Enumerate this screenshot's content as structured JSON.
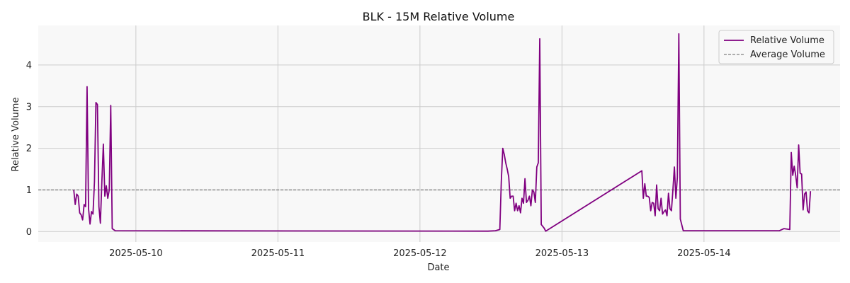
{
  "chart_data": {
    "type": "line",
    "title": "BLK - 15M Relative Volume",
    "xlabel": "Date",
    "ylabel": "Relative Volume",
    "x_range": [
      "2025-05-09T07:30",
      "2025-05-14T23:00"
    ],
    "ylim": [
      -0.25,
      4.95
    ],
    "x_ticks": [
      "2025-05-10",
      "2025-05-11",
      "2025-05-12",
      "2025-05-13",
      "2025-05-14"
    ],
    "y_ticks": [
      0,
      1,
      2,
      3,
      4
    ],
    "grid": true,
    "legend_position": "top-right",
    "colors": {
      "relative_volume": "#800080",
      "average_volume": "#808080",
      "plot_bg": "#f8f8f8",
      "grid": "#cccccc"
    },
    "series": [
      {
        "name": "Relative Volume",
        "style": "solid",
        "points": [
          [
            "2025-05-09T13:30",
            1.0
          ],
          [
            "2025-05-09T13:45",
            0.65
          ],
          [
            "2025-05-09T14:00",
            0.9
          ],
          [
            "2025-05-09T14:15",
            0.85
          ],
          [
            "2025-05-09T14:30",
            0.45
          ],
          [
            "2025-05-09T14:45",
            0.4
          ],
          [
            "2025-05-09T15:00",
            0.28
          ],
          [
            "2025-05-09T15:15",
            0.65
          ],
          [
            "2025-05-09T15:30",
            0.6
          ],
          [
            "2025-05-09T15:45",
            3.48
          ],
          [
            "2025-05-09T16:00",
            0.55
          ],
          [
            "2025-05-09T16:15",
            0.18
          ],
          [
            "2025-05-09T16:30",
            0.48
          ],
          [
            "2025-05-09T16:45",
            0.42
          ],
          [
            "2025-05-09T17:00",
            1.2
          ],
          [
            "2025-05-09T17:15",
            3.1
          ],
          [
            "2025-05-09T17:30",
            3.05
          ],
          [
            "2025-05-09T17:45",
            0.6
          ],
          [
            "2025-05-09T18:00",
            0.2
          ],
          [
            "2025-05-09T18:15",
            1.2
          ],
          [
            "2025-05-09T18:30",
            2.1
          ],
          [
            "2025-05-09T18:45",
            0.85
          ],
          [
            "2025-05-09T19:00",
            1.1
          ],
          [
            "2025-05-09T19:15",
            0.8
          ],
          [
            "2025-05-09T19:30",
            1.0
          ],
          [
            "2025-05-09T19:45",
            3.03
          ],
          [
            "2025-05-09T20:00",
            0.07
          ],
          [
            "2025-05-09T20:30",
            0.02
          ],
          [
            "2025-05-12T11:30",
            0.01
          ],
          [
            "2025-05-12T12:45",
            0.02
          ],
          [
            "2025-05-12T13:30",
            0.05
          ],
          [
            "2025-05-12T13:45",
            1.2
          ],
          [
            "2025-05-12T14:00",
            2.0
          ],
          [
            "2025-05-12T14:15",
            1.85
          ],
          [
            "2025-05-12T14:30",
            1.65
          ],
          [
            "2025-05-12T14:45",
            1.5
          ],
          [
            "2025-05-12T15:00",
            1.32
          ],
          [
            "2025-05-12T15:15",
            0.8
          ],
          [
            "2025-05-12T15:30",
            0.85
          ],
          [
            "2025-05-12T15:45",
            0.85
          ],
          [
            "2025-05-12T16:00",
            0.5
          ],
          [
            "2025-05-12T16:15",
            0.68
          ],
          [
            "2025-05-12T16:30",
            0.5
          ],
          [
            "2025-05-12T16:45",
            0.62
          ],
          [
            "2025-05-12T17:00",
            0.45
          ],
          [
            "2025-05-12T17:15",
            0.8
          ],
          [
            "2025-05-12T17:30",
            0.68
          ],
          [
            "2025-05-12T17:45",
            1.27
          ],
          [
            "2025-05-12T18:00",
            0.7
          ],
          [
            "2025-05-12T18:15",
            0.75
          ],
          [
            "2025-05-12T18:30",
            0.85
          ],
          [
            "2025-05-12T18:45",
            0.62
          ],
          [
            "2025-05-12T19:00",
            1.0
          ],
          [
            "2025-05-12T19:15",
            0.95
          ],
          [
            "2025-05-12T19:30",
            0.7
          ],
          [
            "2025-05-12T19:45",
            1.55
          ],
          [
            "2025-05-12T20:00",
            1.65
          ],
          [
            "2025-05-12T20:15",
            4.63
          ],
          [
            "2025-05-12T20:30",
            0.17
          ],
          [
            "2025-05-12T21:00",
            0.08
          ],
          [
            "2025-05-12T21:15",
            0.01
          ],
          [
            "2025-05-13T13:30",
            1.46
          ],
          [
            "2025-05-13T13:45",
            0.8
          ],
          [
            "2025-05-13T14:00",
            1.15
          ],
          [
            "2025-05-13T14:15",
            0.85
          ],
          [
            "2025-05-13T14:30",
            0.85
          ],
          [
            "2025-05-13T14:45",
            0.82
          ],
          [
            "2025-05-13T15:00",
            0.5
          ],
          [
            "2025-05-13T15:15",
            0.7
          ],
          [
            "2025-05-13T15:30",
            0.68
          ],
          [
            "2025-05-13T15:45",
            0.38
          ],
          [
            "2025-05-13T16:00",
            1.12
          ],
          [
            "2025-05-13T16:15",
            0.55
          ],
          [
            "2025-05-13T16:30",
            0.5
          ],
          [
            "2025-05-13T16:45",
            0.8
          ],
          [
            "2025-05-13T17:00",
            0.42
          ],
          [
            "2025-05-13T17:15",
            0.48
          ],
          [
            "2025-05-13T17:30",
            0.52
          ],
          [
            "2025-05-13T17:45",
            0.38
          ],
          [
            "2025-05-13T18:00",
            0.92
          ],
          [
            "2025-05-13T18:15",
            0.55
          ],
          [
            "2025-05-13T18:30",
            0.5
          ],
          [
            "2025-05-13T18:45",
            1.0
          ],
          [
            "2025-05-13T19:00",
            1.55
          ],
          [
            "2025-05-13T19:15",
            0.8
          ],
          [
            "2025-05-13T19:30",
            1.3
          ],
          [
            "2025-05-13T19:45",
            4.75
          ],
          [
            "2025-05-13T20:00",
            0.3
          ],
          [
            "2025-05-13T20:30",
            0.02
          ],
          [
            "2025-05-14T11:30",
            0.02
          ],
          [
            "2025-05-14T12:45",
            0.02
          ],
          [
            "2025-05-14T13:30",
            0.07
          ],
          [
            "2025-05-14T14:30",
            0.05
          ],
          [
            "2025-05-14T14:45",
            1.9
          ],
          [
            "2025-05-14T15:00",
            1.35
          ],
          [
            "2025-05-14T15:15",
            1.57
          ],
          [
            "2025-05-14T15:30",
            1.35
          ],
          [
            "2025-05-14T15:45",
            1.05
          ],
          [
            "2025-05-14T16:00",
            2.08
          ],
          [
            "2025-05-14T16:15",
            1.4
          ],
          [
            "2025-05-14T16:30",
            1.38
          ],
          [
            "2025-05-14T16:45",
            0.52
          ],
          [
            "2025-05-14T17:00",
            0.9
          ],
          [
            "2025-05-14T17:15",
            0.95
          ],
          [
            "2025-05-14T17:30",
            0.5
          ],
          [
            "2025-05-14T17:45",
            0.45
          ],
          [
            "2025-05-14T18:00",
            0.97
          ]
        ]
      },
      {
        "name": "Average Volume",
        "style": "dashed",
        "value": 1.0
      }
    ]
  }
}
